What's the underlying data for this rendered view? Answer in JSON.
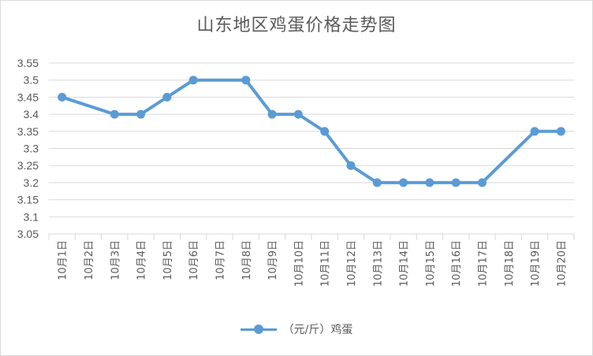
{
  "chart_data": {
    "type": "line",
    "title": "山东地区鸡蛋价格走势图",
    "categories": [
      "10月1日",
      "10月2日",
      "10月3日",
      "10月4日",
      "10月5日",
      "10月6日",
      "10月7日",
      "10月8日",
      "10月9日",
      "10月10日",
      "10月11日",
      "10月12日",
      "10月13日",
      "10月14日",
      "10月15日",
      "10月16日",
      "10月17日",
      "10月18日",
      "10月19日",
      "10月20日"
    ],
    "series": [
      {
        "name": "（元/斤）鸡蛋",
        "color": "#5b9bd5",
        "values": [
          3.45,
          null,
          3.4,
          3.4,
          3.45,
          3.5,
          null,
          3.5,
          3.4,
          3.4,
          3.35,
          3.25,
          3.2,
          3.2,
          3.2,
          3.2,
          3.2,
          null,
          3.35,
          3.35
        ]
      }
    ],
    "yticks": [
      "3.05",
      "3.1",
      "3.15",
      "3.2",
      "3.25",
      "3.3",
      "3.35",
      "3.4",
      "3.45",
      "3.5",
      "3.55"
    ],
    "ylim": [
      3.05,
      3.55
    ],
    "grid": true,
    "legend": "bottom"
  }
}
